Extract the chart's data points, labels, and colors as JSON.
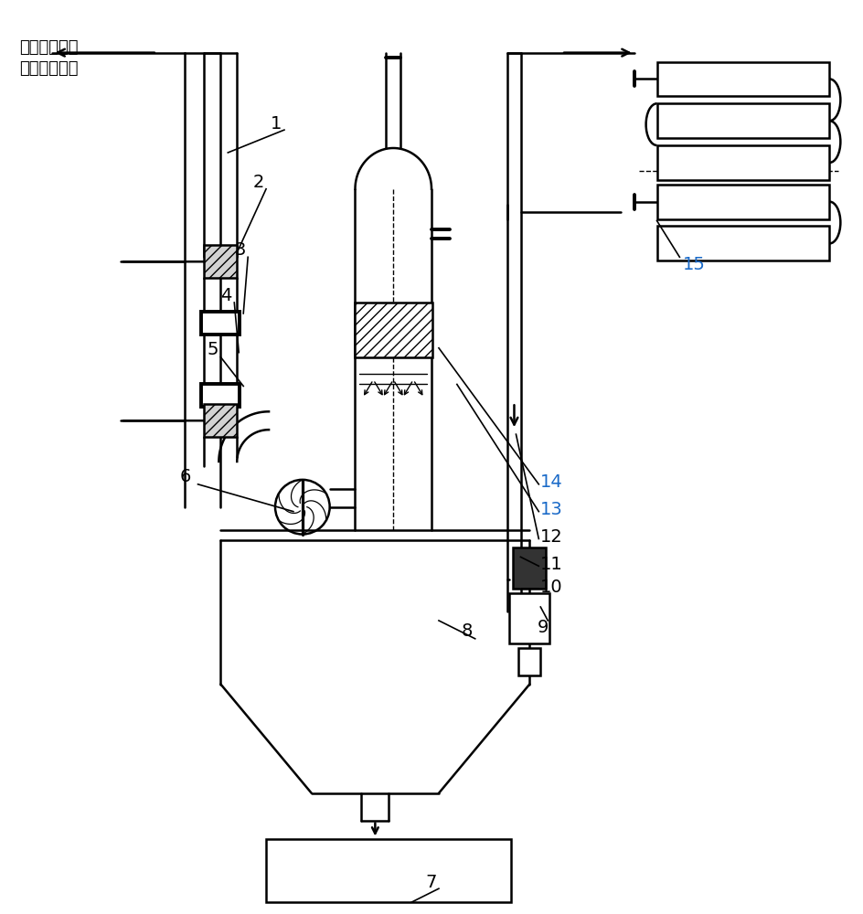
{
  "bg_color": "#ffffff",
  "line_color": "#000000",
  "label_color_orange": "#1a6ac8",
  "label_color_black": "#000000",
  "figsize": [
    9.45,
    10.0
  ],
  "dpi": 100,
  "top_label": "返回前段工序\n进行控温收尘"
}
